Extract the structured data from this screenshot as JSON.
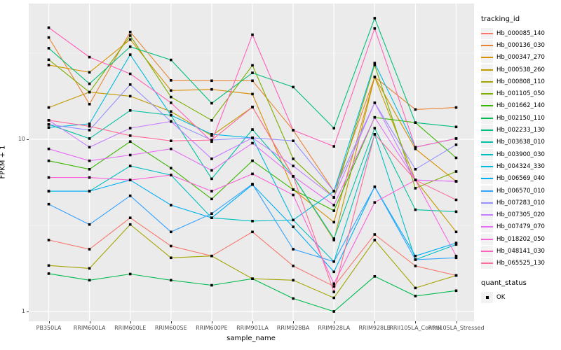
{
  "chart_data": {
    "type": "line",
    "title": "",
    "xlabel": "sample_name",
    "ylabel": "FPKM + 1",
    "y_scale": "log10",
    "y_ticks": [
      1,
      10
    ],
    "y_tick_labels": [
      "1",
      "10"
    ],
    "ylim": [
      0.88,
      61
    ],
    "grid": true,
    "panel_bg": "#EBEBEB",
    "grid_color": "#FFFFFF",
    "point_marker": "black-square",
    "legend_position": "right",
    "legend_title": "tracking_id",
    "categories": [
      "PB350LA",
      "RRIM600LA",
      "RRIM600LE",
      "RRIM600SE",
      "RRIM600PE",
      "RRIM901LA",
      "RRIM928BA",
      "RRIM928LA",
      "RRIM928LB",
      "RRII105LA_Control",
      "RRII105LA_Stressed"
    ],
    "series": [
      {
        "name": "Hb_000085_140",
        "color": "#F8766D",
        "values": [
          2.6,
          2.3,
          3.5,
          2.4,
          2.1,
          2.9,
          1.84,
          1.4,
          2.8,
          1.84,
          1.62
        ]
      },
      {
        "name": "Hb_000136_030",
        "color": "#EA8331",
        "values": [
          39,
          16,
          42,
          22,
          21.9,
          21.9,
          11.3,
          5.0,
          23,
          14.9,
          15.3
        ]
      },
      {
        "name": "Hb_000347_270",
        "color": "#D89000",
        "values": [
          27,
          24.5,
          38,
          19.2,
          19.5,
          18.3,
          5.1,
          3.3,
          23,
          8.8,
          5.7
        ]
      },
      {
        "name": "Hb_000538_260",
        "color": "#C09B00",
        "values": [
          15.3,
          18.8,
          17.8,
          14.5,
          10.5,
          15.4,
          6.1,
          2.6,
          23,
          5.8,
          2.9
        ]
      },
      {
        "name": "Hb_000808_110",
        "color": "#A3A500",
        "values": [
          1.85,
          1.78,
          3.2,
          2.05,
          2.1,
          1.55,
          1.52,
          1.2,
          2.6,
          1.37,
          1.62
        ]
      },
      {
        "name": "Hb_001105_050",
        "color": "#7CAE00",
        "values": [
          29,
          18.8,
          40,
          17.6,
          12.9,
          26.9,
          7.7,
          4.6,
          27,
          5.2,
          6.5
        ]
      },
      {
        "name": "Hb_001662_140",
        "color": "#39B600",
        "values": [
          7.5,
          6.7,
          9.7,
          6.8,
          4.5,
          7.5,
          5.1,
          3.85,
          13.4,
          12.5,
          7.8
        ]
      },
      {
        "name": "Hb_002150_110",
        "color": "#00BB4E",
        "values": [
          1.66,
          1.52,
          1.65,
          1.52,
          1.42,
          1.55,
          1.19,
          1.0,
          1.6,
          1.23,
          1.32
        ]
      },
      {
        "name": "Hb_002233_130",
        "color": "#00BF7D",
        "values": [
          33.8,
          21,
          34.5,
          28.9,
          16.2,
          24.3,
          20.1,
          11.6,
          50.5,
          12.5,
          11.8
        ]
      },
      {
        "name": "Hb_003638_010",
        "color": "#00C1A3",
        "values": [
          12.2,
          10.1,
          14.7,
          13.8,
          5.9,
          11.4,
          6.1,
          2.65,
          11.6,
          3.9,
          3.8
        ]
      },
      {
        "name": "Hb_003900_030",
        "color": "#00BFC4",
        "values": [
          5.0,
          5.0,
          7.0,
          6.2,
          3.5,
          3.35,
          3.4,
          1.95,
          10.7,
          2.0,
          2.45
        ]
      },
      {
        "name": "Hb_004324_330",
        "color": "#00BAE0",
        "values": [
          11.7,
          12.3,
          31,
          13.8,
          10.7,
          10.2,
          3.4,
          5.0,
          27.7,
          9.0,
          10.1
        ]
      },
      {
        "name": "Hb_006569_040",
        "color": "#00B0F6",
        "values": [
          5.0,
          5.0,
          5.8,
          4.15,
          3.5,
          5.45,
          3.1,
          1.7,
          5.3,
          2.1,
          2.5
        ]
      },
      {
        "name": "Hb_006570_010",
        "color": "#35A2FF",
        "values": [
          4.2,
          3.2,
          4.7,
          2.9,
          3.7,
          5.5,
          2.3,
          1.95,
          5.3,
          2.0,
          2.05
        ]
      },
      {
        "name": "Hb_007283_010",
        "color": "#9590FF",
        "values": [
          12.2,
          11.3,
          20.8,
          12.7,
          9.9,
          10.2,
          9.8,
          5.0,
          16.3,
          6.7,
          9.3
        ]
      },
      {
        "name": "Hb_007305_020",
        "color": "#C77CFF",
        "values": [
          12.9,
          9.0,
          11.6,
          12.7,
          7.7,
          10.2,
          7.0,
          4.6,
          16.3,
          5.8,
          5.7
        ]
      },
      {
        "name": "Hb_007479_070",
        "color": "#E76BF3",
        "values": [
          8.8,
          7.5,
          8.1,
          8.8,
          6.6,
          9.5,
          6.1,
          4.15,
          13.4,
          5.8,
          5.7
        ]
      },
      {
        "name": "Hb_018202_050",
        "color": "#FA62DB",
        "values": [
          6.0,
          6.0,
          5.8,
          6.2,
          5.0,
          6.3,
          4.75,
          1.45,
          4.3,
          5.8,
          2.1
        ]
      },
      {
        "name": "Hb_048141_030",
        "color": "#FF62BC",
        "values": [
          44.5,
          30,
          24,
          16.3,
          9.7,
          40.5,
          11.3,
          9.1,
          44,
          9.0,
          10.1
        ]
      },
      {
        "name": "Hb_065525_130",
        "color": "#FF6A98",
        "values": [
          12.9,
          11.9,
          10.5,
          9.8,
          9.9,
          15.4,
          6.1,
          1.3,
          10.7,
          5.8,
          4.45
        ]
      }
    ],
    "legend2_title": "quant_status",
    "legend2_items": [
      {
        "label": "OK",
        "marker": "black-square"
      }
    ]
  }
}
